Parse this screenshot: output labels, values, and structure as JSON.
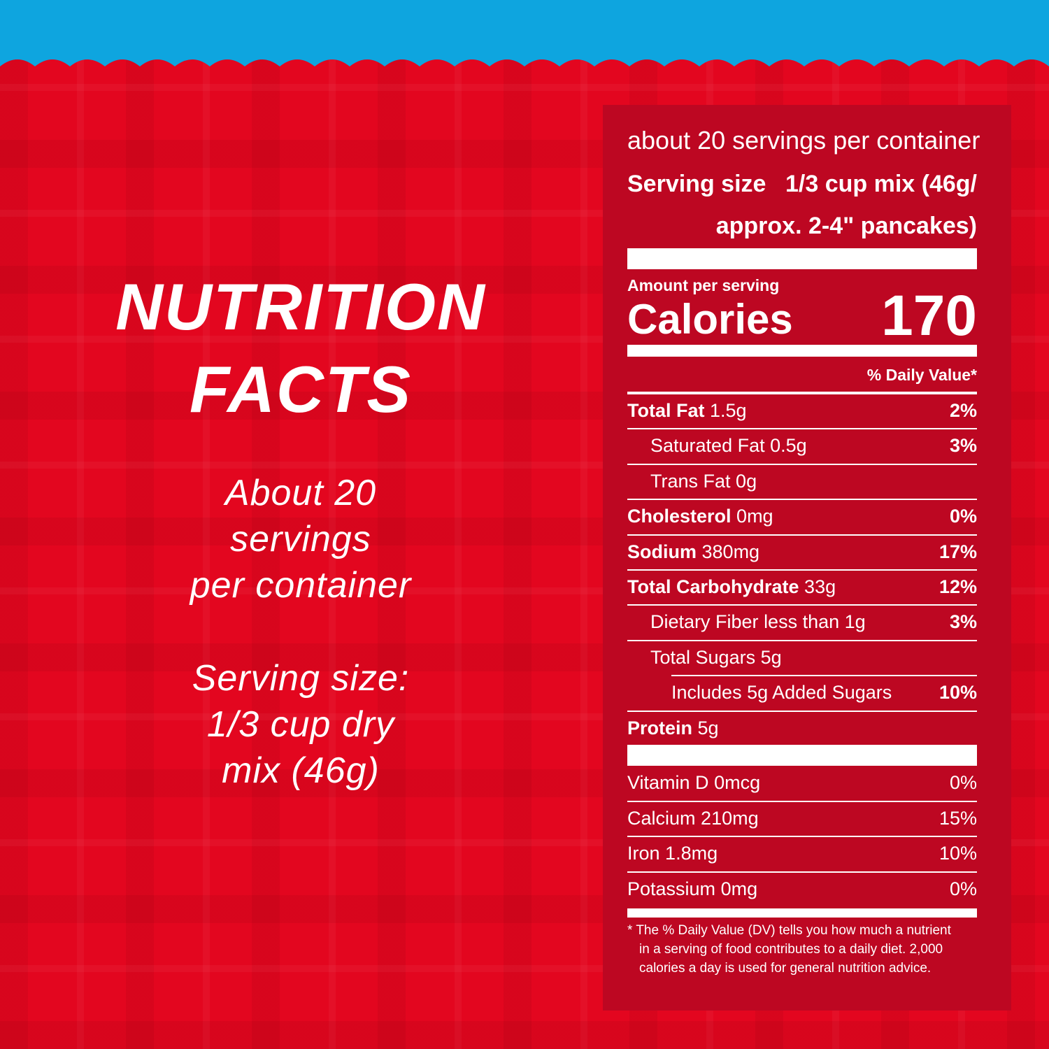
{
  "left": {
    "title_lines": [
      "NUTRITION",
      "FACTS"
    ],
    "servings_lines": [
      "About 20",
      "servings",
      "per container"
    ],
    "serving_size_lines": [
      "Serving size:",
      "1/3 cup dry",
      "mix (46g)"
    ]
  },
  "label": {
    "servings_per_container": "about 20 servings per container",
    "serving_size_label": "Serving size",
    "serving_size_value_lines": [
      "1/3 cup mix (46g/",
      "approx. 2-4\" pancakes)"
    ],
    "amount_per_serving": "Amount per serving",
    "calories_label": "Calories",
    "calories_value": 170,
    "daily_value_header": "% Daily Value*",
    "nutrients": [
      {
        "name": "Total Fat",
        "amount": "1.5g",
        "dv": "2%",
        "bold": true,
        "indent": 0
      },
      {
        "name": "Saturated Fat",
        "amount": "0.5g",
        "dv": "3%",
        "bold": false,
        "indent": 1
      },
      {
        "name": "Trans Fat",
        "amount": "0g",
        "bold": false,
        "indent": 1
      },
      {
        "name": "Cholesterol",
        "amount": "0mg",
        "dv": "0%",
        "bold": true,
        "indent": 0
      },
      {
        "name": "Sodium",
        "amount": "380mg",
        "dv": "17%",
        "bold": true,
        "indent": 0
      },
      {
        "name": "Total Carbohydrate",
        "amount": "33g",
        "dv": "12%",
        "bold": true,
        "indent": 0
      },
      {
        "name": "Dietary Fiber",
        "amount": "less than 1g",
        "dv": "3%",
        "bold": false,
        "indent": 1
      },
      {
        "name": "Total Sugars",
        "amount": "5g",
        "bold": false,
        "indent": 1
      },
      {
        "name": "Includes 5g Added Sugars",
        "dv": "10%",
        "bold": false,
        "indent": 2
      },
      {
        "name": "Protein",
        "amount": "5g",
        "bold": true,
        "indent": 0
      }
    ],
    "vitamins": [
      {
        "name": "Vitamin D",
        "amount": "0mcg",
        "dv": "0%"
      },
      {
        "name": "Calcium",
        "amount": "210mg",
        "dv": "15%"
      },
      {
        "name": "Iron",
        "amount": "1.8mg",
        "dv": "10%"
      },
      {
        "name": "Potassium",
        "amount": "0mg",
        "dv": "0%"
      }
    ],
    "footnote_lines": [
      "* The % Daily Value (DV) tells you how much a nutrient",
      "in a serving of food contributes to a daily diet. 2,000",
      "calories a day is used for general nutrition advice."
    ]
  }
}
